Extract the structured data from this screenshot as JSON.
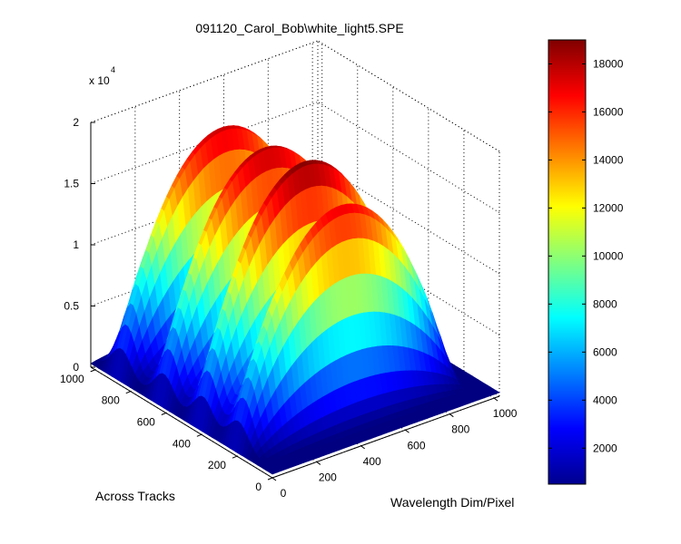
{
  "chart_data": {
    "type": "surface",
    "title": "091120_Carol_Bob\\white_light5.SPE",
    "xlabel": "Wavelength Dim/Pixel",
    "ylabel": "Across Tracks",
    "zlabel": "",
    "z_exponent_label": "x 10",
    "z_exponent_power": "4",
    "xlim": [
      0,
      1024
    ],
    "ylim": [
      0,
      1024
    ],
    "zlim": [
      0,
      20000
    ],
    "x_ticks": [
      "0",
      "200",
      "400",
      "600",
      "800",
      "1000"
    ],
    "y_ticks": [
      "0",
      "200",
      "400",
      "600",
      "800",
      "1000"
    ],
    "z_ticks": [
      "0",
      "0.5",
      "1",
      "1.5",
      "2"
    ],
    "colorbar": {
      "colormap": "jet",
      "range": [
        500,
        19000
      ],
      "ticks": [
        "2000",
        "4000",
        "6000",
        "8000",
        "10000",
        "12000",
        "14000",
        "16000",
        "18000"
      ]
    },
    "grid": true,
    "view": {
      "azimuth": -37.5,
      "elevation": 30
    },
    "tracks": [
      {
        "y_center": 880,
        "peak": 17500,
        "x_half_width": 480
      },
      {
        "y_center": 640,
        "peak": 18000,
        "x_half_width": 480
      },
      {
        "y_center": 420,
        "peak": 18700,
        "x_half_width": 480
      },
      {
        "y_center": 220,
        "peak": 16800,
        "x_half_width": 480
      }
    ],
    "x_peak_center": 480
  }
}
